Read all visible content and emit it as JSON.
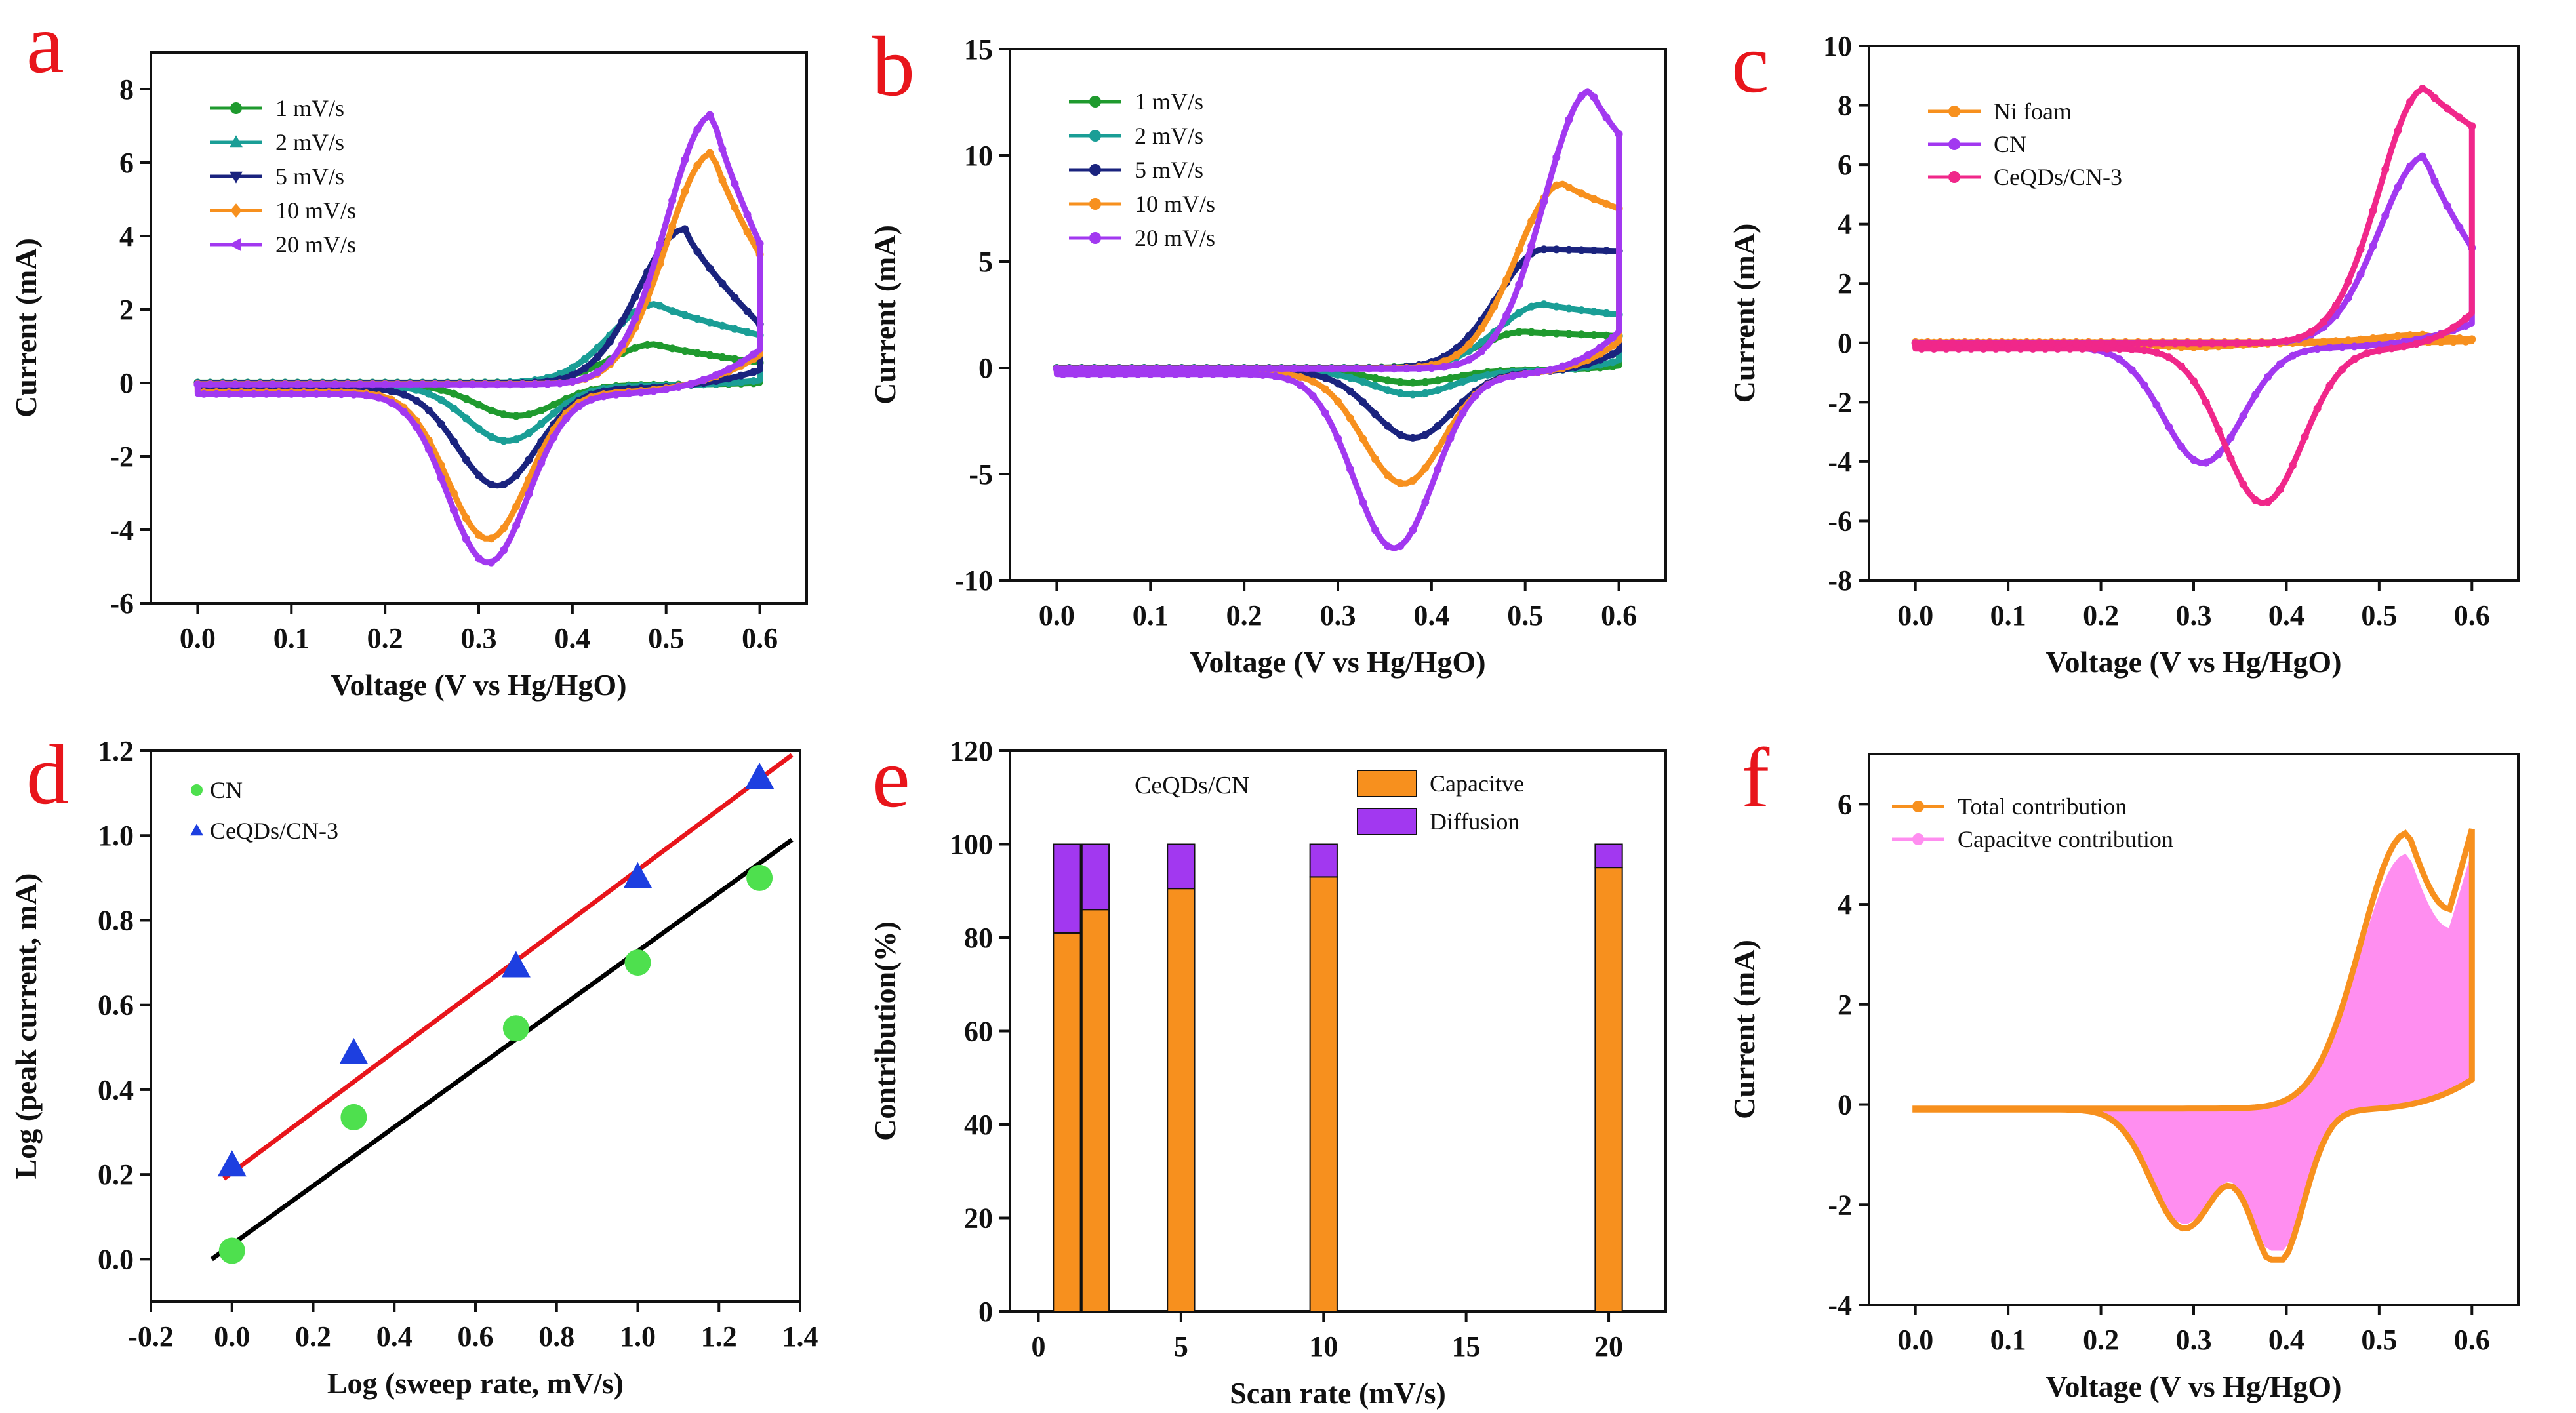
{
  "chart_data": [
    {
      "panel": "a",
      "type": "line",
      "xlabel": "Voltage (V vs Hg/HgO)",
      "ylabel": "Current (mA)",
      "xlim": [
        -0.05,
        0.65
      ],
      "ylim": [
        -6,
        9
      ],
      "xticks": [
        "0.0",
        "0.1",
        "0.2",
        "0.3",
        "0.4",
        "0.5",
        "0.6"
      ],
      "yticks": [
        "-6",
        "-4",
        "-2",
        "0",
        "2",
        "4",
        "6",
        "8"
      ],
      "legend_position": "top-left",
      "series": [
        {
          "name": "1 mV/s",
          "color": "#1f9a2e",
          "marker": "circle",
          "anodic_peak": [
            0.49,
            1.05
          ],
          "cathodic_peak": [
            0.34,
            -0.85
          ],
          "end_high": 0.55,
          "end_low": 0.05,
          "baseline": -0.05
        },
        {
          "name": "2 mV/s",
          "color": "#1a9e96",
          "marker": "triangle-up",
          "anodic_peak": [
            0.49,
            2.15
          ],
          "cathodic_peak": [
            0.33,
            -1.5
          ],
          "end_high": 1.3,
          "end_low": 0.15,
          "baseline": -0.08
        },
        {
          "name": "5 mV/s",
          "color": "#1a237e",
          "marker": "triangle-down",
          "anodic_peak": [
            0.52,
            4.2
          ],
          "cathodic_peak": [
            0.32,
            -2.65
          ],
          "end_high": 1.6,
          "end_low": 0.5,
          "baseline": -0.15
        },
        {
          "name": "10 mV/s",
          "color": "#f7901e",
          "marker": "diamond",
          "anodic_peak": [
            0.55,
            6.3
          ],
          "cathodic_peak": [
            0.31,
            -4.0
          ],
          "end_high": 3.5,
          "end_low": 1.0,
          "baseline": -0.25
        },
        {
          "name": "20 mV/s",
          "color": "#a238f0",
          "marker": "triangle-left",
          "anodic_peak": [
            0.55,
            7.35
          ],
          "cathodic_peak": [
            0.31,
            -4.6
          ],
          "end_high": 3.8,
          "end_low": 1.2,
          "baseline": -0.3
        }
      ]
    },
    {
      "panel": "b",
      "type": "line",
      "xlabel": "Voltage (V vs Hg/HgO)",
      "ylabel": "Current (mA)",
      "xlim": [
        -0.05,
        0.65
      ],
      "ylim": [
        -10,
        15
      ],
      "xticks": [
        "0.0",
        "0.1",
        "0.2",
        "0.3",
        "0.4",
        "0.5",
        "0.6"
      ],
      "yticks": [
        "-10",
        "-5",
        "0",
        "5",
        "10",
        "15"
      ],
      "legend_position": "top-left",
      "series": [
        {
          "name": "1 mV/s",
          "color": "#1f9a2e",
          "anodic_peak": [
            0.5,
            1.7
          ],
          "cathodic_peak": [
            0.38,
            -0.6
          ],
          "end_high": 1.5,
          "end_low": 0.2,
          "baseline": -0.1
        },
        {
          "name": "2 mV/s",
          "color": "#1a9e96",
          "anodic_peak": [
            0.52,
            3.0
          ],
          "cathodic_peak": [
            0.38,
            -1.1
          ],
          "end_high": 2.5,
          "end_low": 0.5,
          "baseline": -0.15
        },
        {
          "name": "5 mV/s",
          "color": "#1a237e",
          "anodic_peak": [
            0.52,
            5.6
          ],
          "cathodic_peak": [
            0.38,
            -3.1
          ],
          "end_high": 5.5,
          "end_low": 1.0,
          "baseline": -0.2
        },
        {
          "name": "10 mV/s",
          "color": "#f7901e",
          "anodic_peak": [
            0.54,
            8.7
          ],
          "cathodic_peak": [
            0.37,
            -5.2
          ],
          "end_high": 7.5,
          "end_low": 1.5,
          "baseline": -0.25
        },
        {
          "name": "20 mV/s",
          "color": "#a238f0",
          "anodic_peak": [
            0.57,
            13.1
          ],
          "cathodic_peak": [
            0.36,
            -8.2
          ],
          "end_high": 11.0,
          "end_low": 2.0,
          "baseline": -0.3
        }
      ]
    },
    {
      "panel": "c",
      "type": "line",
      "xlabel": "Voltage (V vs Hg/HgO)",
      "ylabel": "Current (mA)",
      "xlim": [
        -0.05,
        0.65
      ],
      "ylim": [
        -8,
        10
      ],
      "xticks": [
        "0.0",
        "0.1",
        "0.2",
        "0.3",
        "0.4",
        "0.5",
        "0.6"
      ],
      "yticks": [
        "-8",
        "-6",
        "-4",
        "-2",
        "0",
        "2",
        "4",
        "6",
        "8",
        "10"
      ],
      "legend_position": "top-left",
      "series": [
        {
          "name": "Ni foam",
          "color": "#f7901e",
          "anodic_peak": [
            0.55,
            0.25
          ],
          "cathodic_peak": [
            0.3,
            -0.15
          ],
          "end_high": 0.12,
          "end_low": 0.05,
          "baseline": 0.0
        },
        {
          "name": "CN",
          "color": "#a238f0",
          "anodic_peak": [
            0.55,
            6.3
          ],
          "cathodic_peak": [
            0.31,
            -3.9
          ],
          "end_high": 3.2,
          "end_low": 0.8,
          "baseline": -0.15
        },
        {
          "name": "CeQDs/CN-3",
          "color": "#f0278a",
          "anodic_peak": [
            0.55,
            8.6
          ],
          "cathodic_peak": [
            0.375,
            -5.2
          ],
          "end_high": 7.3,
          "end_low": 1.2,
          "baseline": -0.2
        }
      ]
    },
    {
      "panel": "d",
      "type": "scatter",
      "xlabel": "Log (sweep rate, mV/s)",
      "ylabel": "Log (peak current, mA)",
      "xlim": [
        -0.2,
        1.4
      ],
      "ylim": [
        -0.1,
        1.2
      ],
      "xticks": [
        "-0.2",
        "0.0",
        "0.2",
        "0.4",
        "0.6",
        "0.8",
        "1.0",
        "1.2",
        "1.4"
      ],
      "yticks": [
        "0.0",
        "0.2",
        "0.4",
        "0.6",
        "0.8",
        "1.0",
        "1.2"
      ],
      "legend_position": "top-left",
      "series": [
        {
          "name": "CN",
          "color": "#4ee04e",
          "marker": "circle",
          "x": [
            0,
            0.3,
            0.7,
            1.0,
            1.3
          ],
          "y": [
            0.02,
            0.335,
            0.545,
            0.7,
            0.9
          ],
          "fit_color": "#000000",
          "fit": [
            [
              -0.05,
              0.0
            ],
            [
              1.38,
              0.99
            ]
          ]
        },
        {
          "name": "CeQDs/CN-3",
          "color": "#1d3fe0",
          "marker": "triangle-up",
          "x": [
            0,
            0.3,
            0.7,
            1.0,
            1.3
          ],
          "y": [
            0.22,
            0.485,
            0.69,
            0.9,
            1.135
          ],
          "fit_color": "#e8151b",
          "fit": [
            [
              -0.02,
              0.19
            ],
            [
              1.38,
              1.19
            ]
          ]
        }
      ]
    },
    {
      "panel": "e",
      "type": "bar",
      "title": "CeQDs/CN",
      "xlabel": "Scan rate (mV/s)",
      "ylabel": "Contribution(%)",
      "xlim": [
        -1,
        22
      ],
      "ylim": [
        0,
        120
      ],
      "xticks": [
        "0",
        "5",
        "10",
        "15",
        "20"
      ],
      "yticks": [
        "0",
        "20",
        "40",
        "60",
        "80",
        "100",
        "120"
      ],
      "legend_position": "top-right",
      "categories": [
        "1",
        "2",
        "5",
        "10",
        "20"
      ],
      "x": [
        1,
        2,
        5,
        10,
        20
      ],
      "series": [
        {
          "name": "Capacitve",
          "color": "#f7901e",
          "values": [
            81,
            86,
            90.5,
            93,
            95
          ]
        },
        {
          "name": "Diffusion",
          "color": "#a238f0",
          "values": [
            19,
            14,
            9.5,
            7,
            5
          ]
        }
      ]
    },
    {
      "panel": "f",
      "type": "area",
      "xlabel": "Voltage (V vs Hg/HgO)",
      "ylabel": "Current (mA)",
      "xlim": [
        -0.05,
        0.65
      ],
      "ylim": [
        -4,
        7
      ],
      "xticks": [
        "0.0",
        "0.1",
        "0.2",
        "0.3",
        "0.4",
        "0.5",
        "0.6"
      ],
      "yticks": [
        "-4",
        "-2",
        "0",
        "2",
        "4",
        "6"
      ],
      "legend_position": "top-left",
      "series": [
        {
          "name": "Total contribution",
          "color": "#f7901e",
          "anodic_peak": [
            0.53,
            5.5
          ],
          "cathodic_peak": [
            0.39,
            -3.1
          ],
          "anodic_shoulder": [
            0.29,
            -2.5
          ],
          "end_high": 5.5,
          "trough": [
            0.58,
            3.9
          ],
          "baseline": -0.1
        },
        {
          "name": "Capacitve contribution",
          "color": "#ff8ef0",
          "anodic_peak": [
            0.53,
            5.05
          ],
          "cathodic_peak": [
            0.39,
            -2.9
          ],
          "anodic_shoulder": [
            0.29,
            -2.4
          ],
          "end_high": 5.0,
          "trough": [
            0.58,
            3.5
          ],
          "baseline": -0.08
        }
      ]
    }
  ],
  "panel_letters": [
    "a",
    "b",
    "c",
    "d",
    "e",
    "f"
  ]
}
